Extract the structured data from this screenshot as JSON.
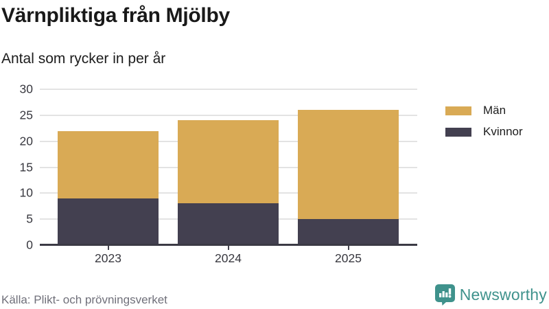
{
  "title": "Värnpliktiga från Mjölby",
  "subtitle": "Antal som rycker in per år",
  "source": "Källa: Plikt- och prövningsverket",
  "brand": {
    "name": "Newsworthy",
    "color": "#3f928c",
    "icon": "bar-chart-speech-bubble-icon"
  },
  "colors": {
    "men": "#d9aa55",
    "women": "#434050",
    "axis": "#3b3a45",
    "grid": "#e3e3e3",
    "tick_text": "#38383f",
    "muted_text": "#70707a",
    "background": "#ffffff"
  },
  "chart_data": {
    "type": "bar",
    "stacked": true,
    "title": "Värnpliktiga från Mjölby",
    "subtitle": "Antal som rycker in per år",
    "categories": [
      "2023",
      "2024",
      "2025"
    ],
    "series": [
      {
        "name": "Kvinnor",
        "color": "#434050",
        "values": [
          9,
          8,
          5
        ]
      },
      {
        "name": "Män",
        "color": "#d9aa55",
        "values": [
          13,
          16,
          21
        ]
      }
    ],
    "totals": [
      22,
      24,
      26
    ],
    "xlabel": "",
    "ylabel": "",
    "ylim": [
      0,
      30
    ],
    "yticks": [
      0,
      5,
      10,
      15,
      20,
      25,
      30
    ],
    "grid": true,
    "legend_position": "right",
    "legend": [
      {
        "label": "Män",
        "color": "#d9aa55"
      },
      {
        "label": "Kvinnor",
        "color": "#434050"
      }
    ]
  }
}
